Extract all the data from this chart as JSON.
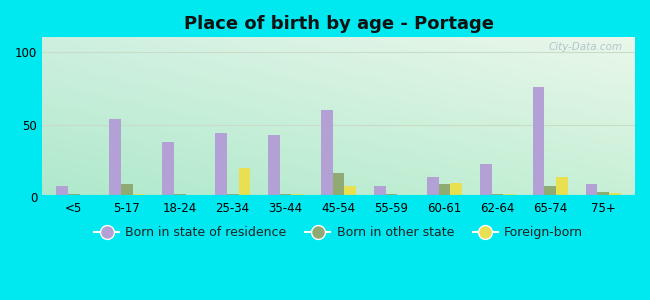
{
  "title": "Place of birth by age - Portage",
  "categories": [
    "<5",
    "5-17",
    "18-24",
    "25-34",
    "35-44",
    "45-54",
    "55-59",
    "60-61",
    "62-64",
    "65-74",
    "75+"
  ],
  "born_in_state": [
    8,
    54,
    38,
    44,
    43,
    60,
    8,
    14,
    23,
    76,
    9
  ],
  "born_other_state": [
    2,
    9,
    2,
    2,
    2,
    17,
    2,
    9,
    2,
    8,
    4
  ],
  "foreign_born": [
    1,
    2,
    1,
    20,
    2,
    8,
    1,
    10,
    2,
    14,
    3
  ],
  "bar_color_state": "#b3a0d4",
  "bar_color_other": "#8faa72",
  "bar_color_foreign": "#e8e050",
  "background_color_fig": "#00e8f0",
  "ylim": [
    0,
    110
  ],
  "yticks": [
    0,
    50,
    100
  ],
  "watermark": "City-Data.com",
  "legend_state": "Born in state of residence",
  "legend_other": "Born in other state",
  "legend_foreign": "Foreign-born",
  "title_fontsize": 13,
  "bar_width": 0.22,
  "grid_color": "#d0e8d0",
  "axis_label_fontsize": 8.5,
  "legend_fontsize": 9
}
